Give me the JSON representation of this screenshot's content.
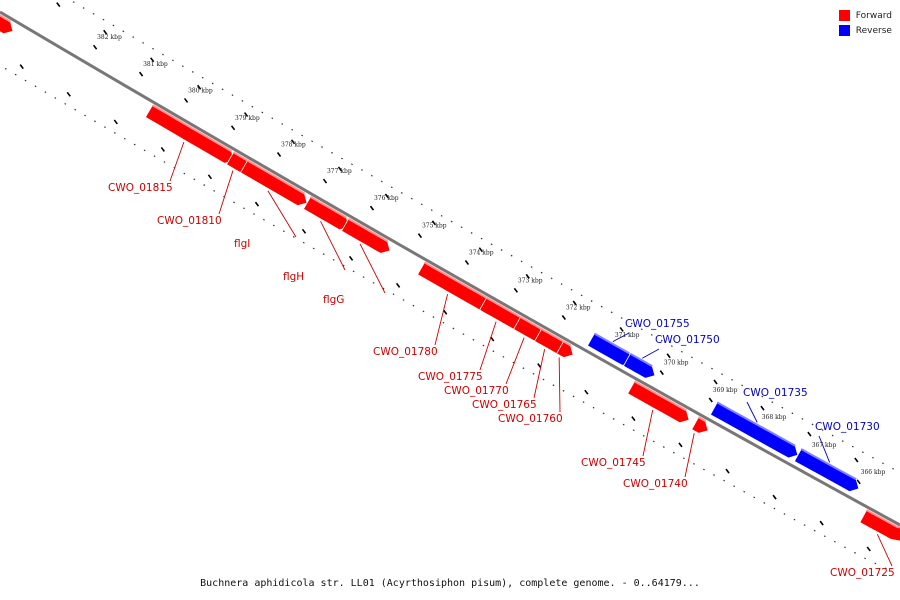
{
  "colors": {
    "forward": "#ff0000",
    "reverse": "#0000ff",
    "forward_label": "#cc0000",
    "reverse_label": "#0000cc",
    "backbone": "#777777"
  },
  "legend": [
    {
      "label": "Forward",
      "color": "#ff0000"
    },
    {
      "label": "Reverse",
      "color": "#0000ff"
    }
  ],
  "caption": "Buchnera aphidicola str. LL01 (Acyrthosiphon pisum), complete genome. - 0..64179...",
  "ticks": [
    {
      "label": "382 kbp"
    },
    {
      "label": "381 kbp"
    },
    {
      "label": "380 kbp"
    },
    {
      "label": "379 kbp"
    },
    {
      "label": "378 kbp"
    },
    {
      "label": "377 kbp"
    },
    {
      "label": "376 kbp"
    },
    {
      "label": "375 kbp"
    },
    {
      "label": "374 kbp"
    },
    {
      "label": "373 kbp"
    },
    {
      "label": "372 kbp"
    },
    {
      "label": "371 kbp"
    },
    {
      "label": "370 kbp"
    },
    {
      "label": "369 kbp"
    },
    {
      "label": "368 kbp"
    },
    {
      "label": "367 kbp"
    },
    {
      "label": "366 kbp"
    }
  ],
  "genes": [
    {
      "label": "",
      "strand": "forward"
    },
    {
      "label": "CWO_01815",
      "strand": "forward"
    },
    {
      "label": "CWO_01810",
      "strand": "forward"
    },
    {
      "label": "flgI",
      "strand": "forward"
    },
    {
      "label": "flgH",
      "strand": "forward"
    },
    {
      "label": "flgG",
      "strand": "forward"
    },
    {
      "label": "CWO_01780",
      "strand": "forward"
    },
    {
      "label": "CWO_01775",
      "strand": "forward"
    },
    {
      "label": "CWO_01770",
      "strand": "forward"
    },
    {
      "label": "CWO_01765",
      "strand": "forward"
    },
    {
      "label": "CWO_01760",
      "strand": "forward"
    },
    {
      "label": "CWO_01755",
      "strand": "reverse"
    },
    {
      "label": "CWO_01750",
      "strand": "reverse"
    },
    {
      "label": "CWO_01745",
      "strand": "forward"
    },
    {
      "label": "CWO_01740",
      "strand": "forward"
    },
    {
      "label": "CWO_01735",
      "strand": "reverse"
    },
    {
      "label": "CWO_01730",
      "strand": "reverse"
    },
    {
      "label": "CWO_01725",
      "strand": "forward"
    }
  ]
}
